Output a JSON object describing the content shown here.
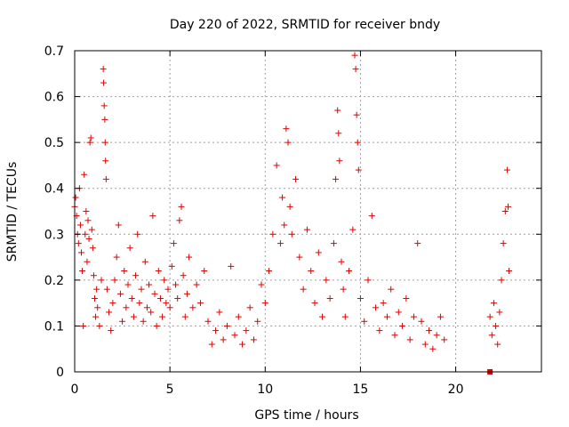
{
  "chart_data": {
    "type": "scatter",
    "title": "Day 220 of 2022, SRMTID for receiver bndy",
    "xlabel": "GPS time / hours",
    "ylabel": "SRMTID / TECUs",
    "xlim": [
      0,
      24.5
    ],
    "ylim": [
      0,
      0.7
    ],
    "x_ticks": [
      0,
      5,
      10,
      15,
      20
    ],
    "x_tick_labels": [
      "0",
      "5",
      "10",
      "15",
      "20"
    ],
    "y_ticks": [
      0,
      0.1,
      0.2,
      0.3,
      0.4,
      0.5,
      0.6,
      0.7
    ],
    "y_tick_labels": [
      "0",
      "0.1",
      "0.2",
      "0.3",
      "0.4",
      "0.5",
      "0.6",
      "0.7"
    ],
    "grid": true,
    "marker": "plus",
    "color": "#e00000",
    "series": [
      {
        "name": "SRMTID",
        "points": [
          [
            0.0,
            0.36
          ],
          [
            0.05,
            0.38
          ],
          [
            0.1,
            0.34
          ],
          [
            0.15,
            0.3
          ],
          [
            0.2,
            0.28
          ],
          [
            0.25,
            0.4
          ],
          [
            0.3,
            0.32
          ],
          [
            0.35,
            0.26
          ],
          [
            0.4,
            0.22
          ],
          [
            0.45,
            0.1
          ],
          [
            0.5,
            0.43
          ],
          [
            0.55,
            0.3
          ],
          [
            0.6,
            0.35
          ],
          [
            0.65,
            0.24
          ],
          [
            0.7,
            0.33
          ],
          [
            0.75,
            0.29
          ],
          [
            0.8,
            0.5
          ],
          [
            0.85,
            0.51
          ],
          [
            0.9,
            0.31
          ],
          [
            0.95,
            0.27
          ],
          [
            1.0,
            0.21
          ],
          [
            1.05,
            0.16
          ],
          [
            1.1,
            0.12
          ],
          [
            1.15,
            0.18
          ],
          [
            1.2,
            0.14
          ],
          [
            1.3,
            0.1
          ],
          [
            1.4,
            0.2
          ],
          [
            1.5,
            0.66
          ],
          [
            1.52,
            0.63
          ],
          [
            1.55,
            0.58
          ],
          [
            1.58,
            0.55
          ],
          [
            1.6,
            0.5
          ],
          [
            1.62,
            0.46
          ],
          [
            1.65,
            0.42
          ],
          [
            1.7,
            0.18
          ],
          [
            1.8,
            0.13
          ],
          [
            1.9,
            0.09
          ],
          [
            2.0,
            0.15
          ],
          [
            2.1,
            0.2
          ],
          [
            2.2,
            0.25
          ],
          [
            2.3,
            0.32
          ],
          [
            2.4,
            0.17
          ],
          [
            2.5,
            0.11
          ],
          [
            2.6,
            0.22
          ],
          [
            2.7,
            0.14
          ],
          [
            2.8,
            0.19
          ],
          [
            2.9,
            0.27
          ],
          [
            3.0,
            0.16
          ],
          [
            3.1,
            0.12
          ],
          [
            3.2,
            0.21
          ],
          [
            3.3,
            0.3
          ],
          [
            3.4,
            0.15
          ],
          [
            3.5,
            0.18
          ],
          [
            3.6,
            0.11
          ],
          [
            3.7,
            0.24
          ],
          [
            3.8,
            0.14
          ],
          [
            3.9,
            0.19
          ],
          [
            4.0,
            0.13
          ],
          [
            4.1,
            0.34
          ],
          [
            4.2,
            0.17
          ],
          [
            4.3,
            0.1
          ],
          [
            4.4,
            0.22
          ],
          [
            4.5,
            0.16
          ],
          [
            4.6,
            0.12
          ],
          [
            4.7,
            0.2
          ],
          [
            4.8,
            0.15
          ],
          [
            4.9,
            0.18
          ],
          [
            5.0,
            0.14
          ],
          [
            5.1,
            0.23
          ],
          [
            5.2,
            0.28
          ],
          [
            5.3,
            0.19
          ],
          [
            5.4,
            0.16
          ],
          [
            5.5,
            0.33
          ],
          [
            5.6,
            0.36
          ],
          [
            5.7,
            0.21
          ],
          [
            5.8,
            0.12
          ],
          [
            5.9,
            0.17
          ],
          [
            6.0,
            0.25
          ],
          [
            6.2,
            0.14
          ],
          [
            6.4,
            0.19
          ],
          [
            6.6,
            0.15
          ],
          [
            6.8,
            0.22
          ],
          [
            7.0,
            0.11
          ],
          [
            7.2,
            0.06
          ],
          [
            7.4,
            0.09
          ],
          [
            7.6,
            0.13
          ],
          [
            7.8,
            0.07
          ],
          [
            8.0,
            0.1
          ],
          [
            8.2,
            0.23
          ],
          [
            8.4,
            0.08
          ],
          [
            8.6,
            0.12
          ],
          [
            8.8,
            0.06
          ],
          [
            9.0,
            0.09
          ],
          [
            9.2,
            0.14
          ],
          [
            9.4,
            0.07
          ],
          [
            9.6,
            0.11
          ],
          [
            9.8,
            0.19
          ],
          [
            10.0,
            0.15
          ],
          [
            10.2,
            0.22
          ],
          [
            10.4,
            0.3
          ],
          [
            10.6,
            0.45
          ],
          [
            10.8,
            0.28
          ],
          [
            10.9,
            0.38
          ],
          [
            11.0,
            0.32
          ],
          [
            11.1,
            0.53
          ],
          [
            11.2,
            0.5
          ],
          [
            11.3,
            0.36
          ],
          [
            11.4,
            0.3
          ],
          [
            11.6,
            0.42
          ],
          [
            11.8,
            0.25
          ],
          [
            12.0,
            0.18
          ],
          [
            12.2,
            0.31
          ],
          [
            12.4,
            0.22
          ],
          [
            12.6,
            0.15
          ],
          [
            12.8,
            0.26
          ],
          [
            13.0,
            0.12
          ],
          [
            13.2,
            0.2
          ],
          [
            13.4,
            0.16
          ],
          [
            13.6,
            0.28
          ],
          [
            13.7,
            0.42
          ],
          [
            13.8,
            0.57
          ],
          [
            13.85,
            0.52
          ],
          [
            13.9,
            0.46
          ],
          [
            14.0,
            0.24
          ],
          [
            14.1,
            0.18
          ],
          [
            14.2,
            0.12
          ],
          [
            14.4,
            0.22
          ],
          [
            14.6,
            0.31
          ],
          [
            14.7,
            0.69
          ],
          [
            14.75,
            0.66
          ],
          [
            14.8,
            0.56
          ],
          [
            14.85,
            0.5
          ],
          [
            14.9,
            0.44
          ],
          [
            15.0,
            0.16
          ],
          [
            15.2,
            0.11
          ],
          [
            15.4,
            0.2
          ],
          [
            15.6,
            0.34
          ],
          [
            15.8,
            0.14
          ],
          [
            16.0,
            0.09
          ],
          [
            16.2,
            0.15
          ],
          [
            16.4,
            0.12
          ],
          [
            16.6,
            0.18
          ],
          [
            16.8,
            0.08
          ],
          [
            17.0,
            0.13
          ],
          [
            17.2,
            0.1
          ],
          [
            17.4,
            0.16
          ],
          [
            17.6,
            0.07
          ],
          [
            17.8,
            0.12
          ],
          [
            18.0,
            0.28
          ],
          [
            18.2,
            0.11
          ],
          [
            18.4,
            0.06
          ],
          [
            18.6,
            0.09
          ],
          [
            18.8,
            0.05
          ],
          [
            19.0,
            0.08
          ],
          [
            19.2,
            0.12
          ],
          [
            19.4,
            0.07
          ],
          [
            21.8,
            0.12
          ],
          [
            21.9,
            0.08
          ],
          [
            22.0,
            0.15
          ],
          [
            22.1,
            0.1
          ],
          [
            22.2,
            0.06
          ],
          [
            22.3,
            0.13
          ],
          [
            22.4,
            0.2
          ],
          [
            22.5,
            0.28
          ],
          [
            22.6,
            0.35
          ],
          [
            22.7,
            0.44
          ],
          [
            22.75,
            0.36
          ],
          [
            22.8,
            0.22
          ]
        ]
      }
    ],
    "isolated_square_marker": [
      21.8,
      0.0
    ]
  }
}
